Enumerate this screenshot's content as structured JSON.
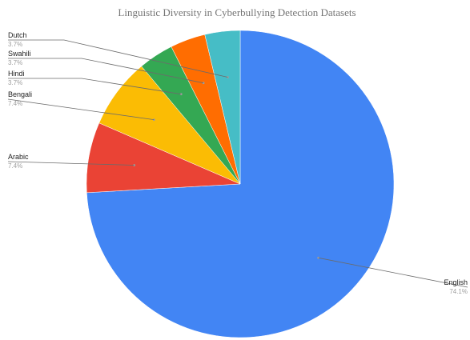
{
  "chart_data": {
    "type": "pie",
    "title": "Linguistic Diversity in Cyberbullying Detection Datasets",
    "slices": [
      {
        "label": "English",
        "value": 74.1,
        "pct_label": "74.1%",
        "color": "#4285f4"
      },
      {
        "label": "Arabic",
        "value": 7.4,
        "pct_label": "7.4%",
        "color": "#ea4335"
      },
      {
        "label": "Bengali",
        "value": 7.4,
        "pct_label": "7.4%",
        "color": "#fbbc04"
      },
      {
        "label": "Hindi",
        "value": 3.7,
        "pct_label": "3.7%",
        "color": "#34a853"
      },
      {
        "label": "Swahili",
        "value": 3.7,
        "pct_label": "3.7%",
        "color": "#ff6d01"
      },
      {
        "label": "Dutch",
        "value": 3.7,
        "pct_label": "3.7%",
        "color": "#46bdc6"
      }
    ],
    "start": "top",
    "direction": "clockwise",
    "legend": "none"
  }
}
